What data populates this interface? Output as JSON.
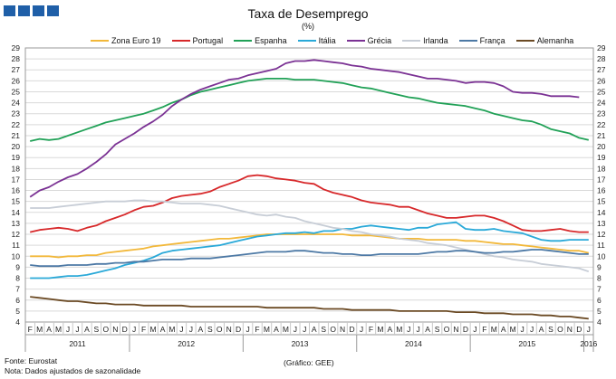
{
  "title": "Taxa de Desemprego",
  "subtitle": "(%)",
  "footer": {
    "source": "Fonte: Eurostat",
    "note": "Nota: Dados ajustados de sazonalidade",
    "credit": "(Gráfico: GEE)"
  },
  "chart_data": {
    "type": "line",
    "title": "Taxa de Desemprego",
    "ylim": [
      4,
      29
    ],
    "yticks": [
      4,
      5,
      6,
      7,
      8,
      9,
      10,
      11,
      12,
      13,
      14,
      15,
      16,
      17,
      18,
      19,
      20,
      21,
      22,
      23,
      24,
      25,
      26,
      27,
      28,
      29
    ],
    "grid": true,
    "legend_position": "top",
    "month_labels": [
      "F",
      "M",
      "A",
      "M",
      "J",
      "J",
      "A",
      "S",
      "O",
      "N",
      "D",
      "J",
      "F",
      "M",
      "A",
      "M",
      "J",
      "J",
      "A",
      "S",
      "O",
      "N",
      "D",
      "J",
      "F",
      "M",
      "A",
      "M",
      "J",
      "J",
      "A",
      "S",
      "O",
      "N",
      "D",
      "J",
      "F",
      "M",
      "A",
      "M",
      "J",
      "J",
      "A",
      "S",
      "O",
      "N",
      "D",
      "J",
      "F",
      "M",
      "A",
      "M",
      "J",
      "J",
      "A",
      "S",
      "O",
      "N",
      "D",
      "J"
    ],
    "years": [
      {
        "label": "2011",
        "start": 0,
        "end": 10
      },
      {
        "label": "2012",
        "start": 11,
        "end": 22
      },
      {
        "label": "2013",
        "start": 23,
        "end": 34
      },
      {
        "label": "2014",
        "start": 35,
        "end": 46
      },
      {
        "label": "2015",
        "start": 47,
        "end": 58
      },
      {
        "label": "2016",
        "start": 59,
        "end": 59
      }
    ],
    "series": [
      {
        "name": "Zona Euro 19",
        "color": "#f2b83a",
        "values": [
          10.0,
          10.0,
          10.0,
          9.9,
          10.0,
          10.0,
          10.1,
          10.1,
          10.3,
          10.4,
          10.5,
          10.6,
          10.7,
          10.9,
          11.0,
          11.1,
          11.2,
          11.3,
          11.4,
          11.5,
          11.6,
          11.6,
          11.7,
          11.8,
          11.9,
          12.0,
          12.0,
          12.0,
          12.0,
          12.0,
          12.0,
          12.0,
          12.0,
          12.0,
          11.9,
          11.9,
          11.9,
          11.8,
          11.7,
          11.6,
          11.6,
          11.6,
          11.5,
          11.5,
          11.5,
          11.5,
          11.4,
          11.4,
          11.3,
          11.2,
          11.1,
          11.1,
          11.0,
          10.9,
          10.8,
          10.7,
          10.6,
          10.5,
          10.5,
          10.3
        ]
      },
      {
        "name": "Portugal",
        "color": "#d7282a",
        "values": [
          12.2,
          12.4,
          12.5,
          12.6,
          12.5,
          12.3,
          12.6,
          12.8,
          13.2,
          13.5,
          13.8,
          14.2,
          14.5,
          14.6,
          14.9,
          15.3,
          15.5,
          15.6,
          15.7,
          15.9,
          16.3,
          16.6,
          16.9,
          17.3,
          17.4,
          17.3,
          17.1,
          17.0,
          16.9,
          16.7,
          16.6,
          16.1,
          15.8,
          15.6,
          15.4,
          15.1,
          14.9,
          14.8,
          14.7,
          14.5,
          14.5,
          14.2,
          13.9,
          13.7,
          13.5,
          13.5,
          13.6,
          13.7,
          13.7,
          13.5,
          13.2,
          12.8,
          12.4,
          12.3,
          12.3,
          12.4,
          12.5,
          12.3,
          12.2,
          12.2
        ]
      },
      {
        "name": "Espanha",
        "color": "#21a157",
        "values": [
          20.5,
          20.7,
          20.6,
          20.7,
          21.0,
          21.3,
          21.6,
          21.9,
          22.2,
          22.4,
          22.6,
          22.8,
          23.0,
          23.3,
          23.6,
          24.0,
          24.3,
          24.7,
          25.0,
          25.2,
          25.4,
          25.6,
          25.8,
          26.0,
          26.1,
          26.2,
          26.2,
          26.2,
          26.1,
          26.1,
          26.1,
          26.0,
          25.9,
          25.8,
          25.6,
          25.4,
          25.3,
          25.1,
          24.9,
          24.7,
          24.5,
          24.4,
          24.2,
          24.0,
          23.9,
          23.8,
          23.7,
          23.5,
          23.3,
          23.0,
          22.8,
          22.6,
          22.4,
          22.3,
          22.0,
          21.6,
          21.4,
          21.2,
          20.8,
          20.6
        ]
      },
      {
        "name": "Itália",
        "color": "#2aa9d8",
        "values": [
          8.0,
          8.0,
          8.0,
          8.1,
          8.2,
          8.2,
          8.3,
          8.5,
          8.7,
          8.9,
          9.2,
          9.4,
          9.6,
          9.9,
          10.3,
          10.5,
          10.6,
          10.7,
          10.8,
          10.9,
          11.0,
          11.2,
          11.4,
          11.6,
          11.8,
          11.9,
          12.0,
          12.1,
          12.1,
          12.2,
          12.1,
          12.3,
          12.3,
          12.5,
          12.5,
          12.7,
          12.8,
          12.7,
          12.6,
          12.5,
          12.4,
          12.6,
          12.6,
          12.9,
          13.0,
          13.1,
          12.5,
          12.4,
          12.4,
          12.5,
          12.3,
          12.2,
          12.1,
          11.8,
          11.5,
          11.4,
          11.4,
          11.5,
          11.5,
          11.5
        ]
      },
      {
        "name": "Grécia",
        "color": "#7b3294",
        "values": [
          15.4,
          16.0,
          16.3,
          16.8,
          17.2,
          17.5,
          18.0,
          18.6,
          19.3,
          20.2,
          20.7,
          21.2,
          21.8,
          22.3,
          22.9,
          23.7,
          24.3,
          24.8,
          25.2,
          25.5,
          25.8,
          26.1,
          26.2,
          26.5,
          26.7,
          26.9,
          27.1,
          27.6,
          27.8,
          27.8,
          27.9,
          27.8,
          27.7,
          27.6,
          27.4,
          27.3,
          27.1,
          27.0,
          26.9,
          26.8,
          26.6,
          26.4,
          26.2,
          26.2,
          26.1,
          26.0,
          25.8,
          25.9,
          25.9,
          25.8,
          25.5,
          25.0,
          24.9,
          24.9,
          24.8,
          24.6,
          24.6,
          24.6,
          24.5,
          null
        ]
      },
      {
        "name": "Irlanda",
        "color": "#c7cdd6",
        "values": [
          14.4,
          14.4,
          14.4,
          14.5,
          14.6,
          14.7,
          14.8,
          14.9,
          15.0,
          15.0,
          15.0,
          15.1,
          15.1,
          15.0,
          15.0,
          14.9,
          14.8,
          14.8,
          14.8,
          14.7,
          14.6,
          14.4,
          14.2,
          14.0,
          13.8,
          13.7,
          13.8,
          13.6,
          13.5,
          13.2,
          13.0,
          12.8,
          12.6,
          12.5,
          12.3,
          12.2,
          12.0,
          11.9,
          11.8,
          11.6,
          11.5,
          11.4,
          11.2,
          11.1,
          11.0,
          10.8,
          10.6,
          10.4,
          10.2,
          10.0,
          9.9,
          9.7,
          9.6,
          9.5,
          9.3,
          9.2,
          9.1,
          9.0,
          8.9,
          8.6
        ]
      },
      {
        "name": "França",
        "color": "#4d79a5",
        "values": [
          9.2,
          9.1,
          9.1,
          9.1,
          9.2,
          9.2,
          9.2,
          9.3,
          9.3,
          9.4,
          9.4,
          9.5,
          9.5,
          9.6,
          9.7,
          9.7,
          9.7,
          9.8,
          9.8,
          9.8,
          9.9,
          10.0,
          10.1,
          10.2,
          10.3,
          10.4,
          10.4,
          10.4,
          10.5,
          10.5,
          10.4,
          10.3,
          10.3,
          10.2,
          10.2,
          10.1,
          10.1,
          10.2,
          10.2,
          10.2,
          10.2,
          10.2,
          10.3,
          10.4,
          10.4,
          10.5,
          10.5,
          10.4,
          10.3,
          10.3,
          10.4,
          10.4,
          10.5,
          10.6,
          10.6,
          10.5,
          10.4,
          10.3,
          10.2,
          10.2
        ]
      },
      {
        "name": "Alemanha",
        "color": "#6b4a24",
        "values": [
          6.3,
          6.2,
          6.1,
          6.0,
          5.9,
          5.9,
          5.8,
          5.7,
          5.7,
          5.6,
          5.6,
          5.6,
          5.5,
          5.5,
          5.5,
          5.5,
          5.5,
          5.4,
          5.4,
          5.4,
          5.4,
          5.4,
          5.4,
          5.4,
          5.4,
          5.3,
          5.3,
          5.3,
          5.3,
          5.3,
          5.3,
          5.2,
          5.2,
          5.2,
          5.1,
          5.1,
          5.1,
          5.1,
          5.1,
          5.0,
          5.0,
          5.0,
          5.0,
          5.0,
          5.0,
          4.9,
          4.9,
          4.9,
          4.8,
          4.8,
          4.8,
          4.7,
          4.7,
          4.7,
          4.6,
          4.6,
          4.5,
          4.5,
          4.4,
          4.3
        ]
      }
    ]
  }
}
